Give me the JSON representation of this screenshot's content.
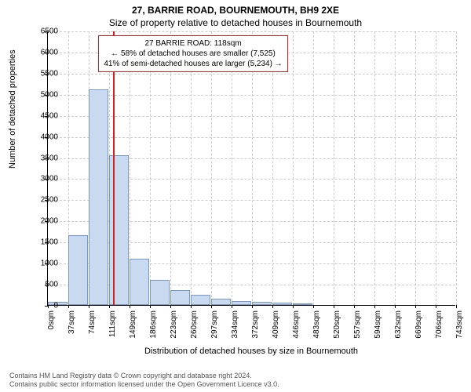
{
  "title_line1": "27, BARRIE ROAD, BOURNEMOUTH, BH9 2XE",
  "title_line2": "Size of property relative to detached houses in Bournemouth",
  "chart": {
    "type": "histogram",
    "background_color": "#ffffff",
    "grid_color": "#cccccc",
    "bar_fill": "#c8d9f0",
    "bar_border": "#7a97c9",
    "marker_color": "#d02020",
    "xlabel": "Distribution of detached houses by size in Bournemouth",
    "ylabel": "Number of detached properties",
    "label_fontsize": 11,
    "tick_fontsize": 10,
    "title_fontsize": 12,
    "ylim": [
      0,
      6500
    ],
    "ytick_step": 500,
    "yticks": [
      0,
      500,
      1000,
      1500,
      2000,
      2500,
      3000,
      3500,
      4000,
      4500,
      5000,
      5500,
      6000,
      6500
    ],
    "xticks": [
      "0sqm",
      "37sqm",
      "74sqm",
      "111sqm",
      "149sqm",
      "186sqm",
      "223sqm",
      "260sqm",
      "297sqm",
      "334sqm",
      "372sqm",
      "409sqm",
      "446sqm",
      "483sqm",
      "520sqm",
      "557sqm",
      "594sqm",
      "632sqm",
      "669sqm",
      "706sqm",
      "743sqm"
    ],
    "xlim_sqm": [
      0,
      743
    ],
    "bars": [
      {
        "x_sqm": 0,
        "w_sqm": 37,
        "value": 80
      },
      {
        "x_sqm": 37,
        "w_sqm": 37,
        "value": 1650
      },
      {
        "x_sqm": 74,
        "w_sqm": 37,
        "value": 5100
      },
      {
        "x_sqm": 111,
        "w_sqm": 38,
        "value": 3550
      },
      {
        "x_sqm": 149,
        "w_sqm": 37,
        "value": 1100
      },
      {
        "x_sqm": 186,
        "w_sqm": 37,
        "value": 600
      },
      {
        "x_sqm": 223,
        "w_sqm": 37,
        "value": 350
      },
      {
        "x_sqm": 260,
        "w_sqm": 37,
        "value": 250
      },
      {
        "x_sqm": 297,
        "w_sqm": 37,
        "value": 150
      },
      {
        "x_sqm": 334,
        "w_sqm": 38,
        "value": 100
      },
      {
        "x_sqm": 372,
        "w_sqm": 37,
        "value": 70
      },
      {
        "x_sqm": 409,
        "w_sqm": 37,
        "value": 50
      },
      {
        "x_sqm": 446,
        "w_sqm": 37,
        "value": 30
      }
    ],
    "marker_sqm": 118,
    "info_box": {
      "line1": "27 BARRIE ROAD: 118sqm",
      "line2": "← 58% of detached houses are smaller (7,525)",
      "line3": "41% of semi-detached houses are larger (5,234) →",
      "left_sqm": 92,
      "top_y_value": 6400
    }
  },
  "footer": {
    "line1": "Contains HM Land Registry data © Crown copyright and database right 2024.",
    "line2": "Contains public sector information licensed under the Open Government Licence v3.0."
  }
}
